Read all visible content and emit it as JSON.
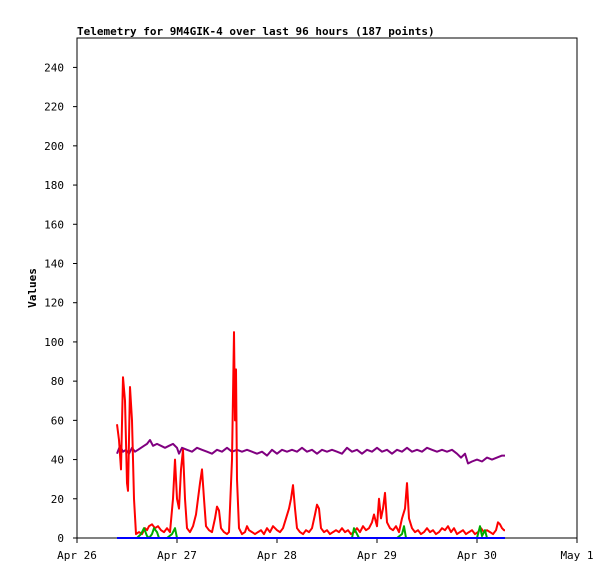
{
  "chart_data": {
    "type": "line",
    "title": "Telemetry for 9M4GIK-4 over last 96 hours (187 points)",
    "xlabel": "",
    "ylabel": "Values",
    "ylim": [
      0,
      255
    ],
    "yticks": [
      0,
      20,
      40,
      60,
      80,
      100,
      120,
      140,
      160,
      180,
      200,
      220,
      240
    ],
    "xlim": [
      0,
      5
    ],
    "xticks": [
      {
        "x": 0,
        "label": "Apr 26"
      },
      {
        "x": 1,
        "label": "Apr 27"
      },
      {
        "x": 2,
        "label": "Apr 28"
      },
      {
        "x": 3,
        "label": "Apr 29"
      },
      {
        "x": 4,
        "label": "Apr 30"
      },
      {
        "x": 5,
        "label": "May 1"
      }
    ],
    "grid": false,
    "legend": "none",
    "series": [
      {
        "color": "#800080",
        "points": [
          [
            0.4,
            43
          ],
          [
            0.43,
            47
          ],
          [
            0.46,
            44
          ],
          [
            0.49,
            45
          ],
          [
            0.52,
            43
          ],
          [
            0.55,
            46
          ],
          [
            0.58,
            44
          ],
          [
            0.61,
            45
          ],
          [
            0.64,
            46
          ],
          [
            0.67,
            47
          ],
          [
            0.7,
            48
          ],
          [
            0.73,
            50
          ],
          [
            0.76,
            47
          ],
          [
            0.8,
            48
          ],
          [
            0.84,
            47
          ],
          [
            0.88,
            46
          ],
          [
            0.92,
            47
          ],
          [
            0.96,
            48
          ],
          [
            1.0,
            46
          ],
          [
            1.02,
            43
          ],
          [
            1.05,
            46
          ],
          [
            1.1,
            45
          ],
          [
            1.15,
            44
          ],
          [
            1.2,
            46
          ],
          [
            1.25,
            45
          ],
          [
            1.3,
            44
          ],
          [
            1.35,
            43
          ],
          [
            1.4,
            45
          ],
          [
            1.45,
            44
          ],
          [
            1.5,
            46
          ],
          [
            1.55,
            44
          ],
          [
            1.6,
            45
          ],
          [
            1.65,
            44
          ],
          [
            1.7,
            45
          ],
          [
            1.75,
            44
          ],
          [
            1.8,
            43
          ],
          [
            1.85,
            44
          ],
          [
            1.9,
            42
          ],
          [
            1.95,
            45
          ],
          [
            2.0,
            43
          ],
          [
            2.05,
            45
          ],
          [
            2.1,
            44
          ],
          [
            2.15,
            45
          ],
          [
            2.2,
            44
          ],
          [
            2.25,
            46
          ],
          [
            2.3,
            44
          ],
          [
            2.35,
            45
          ],
          [
            2.4,
            43
          ],
          [
            2.45,
            45
          ],
          [
            2.5,
            44
          ],
          [
            2.55,
            45
          ],
          [
            2.6,
            44
          ],
          [
            2.65,
            43
          ],
          [
            2.7,
            46
          ],
          [
            2.75,
            44
          ],
          [
            2.8,
            45
          ],
          [
            2.85,
            43
          ],
          [
            2.9,
            45
          ],
          [
            2.95,
            44
          ],
          [
            3.0,
            46
          ],
          [
            3.05,
            44
          ],
          [
            3.1,
            45
          ],
          [
            3.15,
            43
          ],
          [
            3.2,
            45
          ],
          [
            3.25,
            44
          ],
          [
            3.3,
            46
          ],
          [
            3.35,
            44
          ],
          [
            3.4,
            45
          ],
          [
            3.45,
            44
          ],
          [
            3.5,
            46
          ],
          [
            3.55,
            45
          ],
          [
            3.6,
            44
          ],
          [
            3.65,
            45
          ],
          [
            3.7,
            44
          ],
          [
            3.75,
            45
          ],
          [
            3.8,
            43
          ],
          [
            3.84,
            41
          ],
          [
            3.88,
            43
          ],
          [
            3.91,
            38
          ],
          [
            3.95,
            39
          ],
          [
            4.0,
            40
          ],
          [
            4.05,
            39
          ],
          [
            4.1,
            41
          ],
          [
            4.15,
            40
          ],
          [
            4.2,
            41
          ],
          [
            4.25,
            42
          ],
          [
            4.28,
            42
          ]
        ]
      },
      {
        "color": "#ff0000",
        "points": [
          [
            0.4,
            58
          ],
          [
            0.42,
            50
          ],
          [
            0.44,
            35
          ],
          [
            0.46,
            82
          ],
          [
            0.48,
            70
          ],
          [
            0.5,
            28
          ],
          [
            0.51,
            24
          ],
          [
            0.53,
            77
          ],
          [
            0.55,
            60
          ],
          [
            0.57,
            20
          ],
          [
            0.59,
            2
          ],
          [
            0.62,
            3
          ],
          [
            0.65,
            2
          ],
          [
            0.68,
            5
          ],
          [
            0.7,
            4
          ],
          [
            0.72,
            6
          ],
          [
            0.75,
            7
          ],
          [
            0.78,
            5
          ],
          [
            0.81,
            6
          ],
          [
            0.84,
            4
          ],
          [
            0.87,
            3
          ],
          [
            0.9,
            5
          ],
          [
            0.93,
            3
          ],
          [
            0.96,
            20
          ],
          [
            0.98,
            40
          ],
          [
            1.0,
            20
          ],
          [
            1.02,
            15
          ],
          [
            1.04,
            35
          ],
          [
            1.06,
            45
          ],
          [
            1.08,
            20
          ],
          [
            1.1,
            5
          ],
          [
            1.13,
            3
          ],
          [
            1.16,
            6
          ],
          [
            1.19,
            12
          ],
          [
            1.21,
            20
          ],
          [
            1.23,
            28
          ],
          [
            1.25,
            35
          ],
          [
            1.27,
            20
          ],
          [
            1.29,
            6
          ],
          [
            1.32,
            4
          ],
          [
            1.35,
            3
          ],
          [
            1.38,
            10
          ],
          [
            1.4,
            16
          ],
          [
            1.42,
            14
          ],
          [
            1.44,
            5
          ],
          [
            1.47,
            3
          ],
          [
            1.5,
            2
          ],
          [
            1.52,
            3
          ],
          [
            1.55,
            40
          ],
          [
            1.57,
            105
          ],
          [
            1.58,
            60
          ],
          [
            1.59,
            86
          ],
          [
            1.6,
            30
          ],
          [
            1.62,
            5
          ],
          [
            1.65,
            2
          ],
          [
            1.68,
            3
          ],
          [
            1.7,
            6
          ],
          [
            1.72,
            4
          ],
          [
            1.75,
            3
          ],
          [
            1.78,
            2
          ],
          [
            1.81,
            3
          ],
          [
            1.84,
            4
          ],
          [
            1.87,
            2
          ],
          [
            1.9,
            5
          ],
          [
            1.93,
            3
          ],
          [
            1.96,
            6
          ],
          [
            2.0,
            4
          ],
          [
            2.03,
            3
          ],
          [
            2.06,
            5
          ],
          [
            2.09,
            10
          ],
          [
            2.12,
            15
          ],
          [
            2.14,
            20
          ],
          [
            2.16,
            27
          ],
          [
            2.18,
            15
          ],
          [
            2.2,
            5
          ],
          [
            2.23,
            3
          ],
          [
            2.26,
            2
          ],
          [
            2.29,
            4
          ],
          [
            2.32,
            3
          ],
          [
            2.35,
            5
          ],
          [
            2.38,
            12
          ],
          [
            2.4,
            17
          ],
          [
            2.42,
            15
          ],
          [
            2.44,
            5
          ],
          [
            2.47,
            3
          ],
          [
            2.5,
            4
          ],
          [
            2.53,
            2
          ],
          [
            2.56,
            3
          ],
          [
            2.59,
            4
          ],
          [
            2.62,
            3
          ],
          [
            2.65,
            5
          ],
          [
            2.68,
            3
          ],
          [
            2.71,
            4
          ],
          [
            2.74,
            2
          ],
          [
            2.77,
            3
          ],
          [
            2.8,
            5
          ],
          [
            2.83,
            3
          ],
          [
            2.86,
            6
          ],
          [
            2.89,
            4
          ],
          [
            2.92,
            5
          ],
          [
            2.95,
            8
          ],
          [
            2.97,
            12
          ],
          [
            3.0,
            6
          ],
          [
            3.02,
            20
          ],
          [
            3.04,
            10
          ],
          [
            3.06,
            15
          ],
          [
            3.08,
            23
          ],
          [
            3.1,
            8
          ],
          [
            3.13,
            5
          ],
          [
            3.16,
            4
          ],
          [
            3.19,
            6
          ],
          [
            3.22,
            3
          ],
          [
            3.25,
            10
          ],
          [
            3.28,
            15
          ],
          [
            3.3,
            28
          ],
          [
            3.32,
            10
          ],
          [
            3.35,
            5
          ],
          [
            3.38,
            3
          ],
          [
            3.41,
            4
          ],
          [
            3.44,
            2
          ],
          [
            3.47,
            3
          ],
          [
            3.5,
            5
          ],
          [
            3.53,
            3
          ],
          [
            3.56,
            4
          ],
          [
            3.59,
            2
          ],
          [
            3.62,
            3
          ],
          [
            3.65,
            5
          ],
          [
            3.68,
            4
          ],
          [
            3.71,
            6
          ],
          [
            3.74,
            3
          ],
          [
            3.77,
            5
          ],
          [
            3.8,
            2
          ],
          [
            3.83,
            3
          ],
          [
            3.86,
            4
          ],
          [
            3.89,
            2
          ],
          [
            3.92,
            3
          ],
          [
            3.95,
            4
          ],
          [
            3.98,
            2
          ],
          [
            4.01,
            3
          ],
          [
            4.04,
            5
          ],
          [
            4.07,
            3
          ],
          [
            4.1,
            4
          ],
          [
            4.13,
            3
          ],
          [
            4.16,
            2
          ],
          [
            4.19,
            4
          ],
          [
            4.21,
            8
          ],
          [
            4.23,
            7
          ],
          [
            4.25,
            5
          ],
          [
            4.27,
            4
          ],
          [
            4.28,
            4
          ]
        ]
      },
      {
        "color": "#00aa00",
        "points": [
          [
            0.4,
            0
          ],
          [
            0.6,
            0
          ],
          [
            0.64,
            2
          ],
          [
            0.67,
            5
          ],
          [
            0.7,
            1
          ],
          [
            0.72,
            0
          ],
          [
            0.75,
            2
          ],
          [
            0.77,
            5
          ],
          [
            0.8,
            3
          ],
          [
            0.82,
            0
          ],
          [
            0.9,
            0
          ],
          [
            0.95,
            2
          ],
          [
            0.98,
            5
          ],
          [
            1.0,
            0
          ],
          [
            1.2,
            0
          ],
          [
            1.3,
            0
          ],
          [
            1.5,
            0
          ],
          [
            1.6,
            0
          ],
          [
            1.8,
            0
          ],
          [
            2.0,
            0
          ],
          [
            2.2,
            0
          ],
          [
            2.4,
            0
          ],
          [
            2.6,
            0
          ],
          [
            2.75,
            0
          ],
          [
            2.77,
            5
          ],
          [
            2.8,
            2
          ],
          [
            2.82,
            0
          ],
          [
            3.0,
            0
          ],
          [
            3.2,
            0
          ],
          [
            3.25,
            2
          ],
          [
            3.27,
            6
          ],
          [
            3.29,
            0
          ],
          [
            3.5,
            0
          ],
          [
            3.7,
            0
          ],
          [
            3.9,
            0
          ],
          [
            4.0,
            0
          ],
          [
            4.03,
            6
          ],
          [
            4.05,
            1
          ],
          [
            4.08,
            4
          ],
          [
            4.1,
            0
          ],
          [
            4.28,
            0
          ]
        ]
      },
      {
        "color": "#0000ff",
        "points": [
          [
            0.4,
            0
          ],
          [
            4.28,
            0
          ]
        ]
      }
    ]
  }
}
